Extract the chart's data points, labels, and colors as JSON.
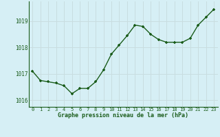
{
  "x": [
    0,
    1,
    2,
    3,
    4,
    5,
    6,
    7,
    8,
    9,
    10,
    11,
    12,
    13,
    14,
    15,
    16,
    17,
    18,
    19,
    20,
    21,
    22,
    23
  ],
  "y": [
    1017.1,
    1016.75,
    1016.7,
    1016.65,
    1016.55,
    1016.25,
    1016.45,
    1016.45,
    1016.7,
    1017.15,
    1017.75,
    1018.1,
    1018.45,
    1018.85,
    1018.8,
    1018.5,
    1018.3,
    1018.2,
    1018.2,
    1018.2,
    1018.35,
    1018.85,
    1019.15,
    1019.45
  ],
  "line_color": "#1a5c1a",
  "marker_color": "#1a5c1a",
  "bg_color": "#d6eff5",
  "grid_color": "#c8dde0",
  "xlabel": "Graphe pression niveau de la mer (hPa)",
  "xlabel_color": "#1a5c1a",
  "tick_color": "#1a5c1a",
  "ylim": [
    1015.75,
    1019.75
  ],
  "yticks": [
    1016,
    1017,
    1018,
    1019
  ],
  "xticks": [
    0,
    1,
    2,
    3,
    4,
    5,
    6,
    7,
    8,
    9,
    10,
    11,
    12,
    13,
    14,
    15,
    16,
    17,
    18,
    19,
    20,
    21,
    22,
    23
  ]
}
